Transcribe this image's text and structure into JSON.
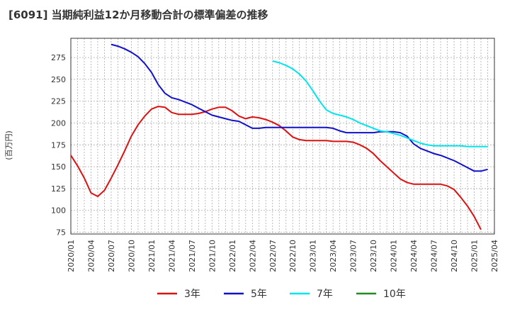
{
  "chart_data": {
    "type": "line",
    "title": "[6091]  当期純利益12か月移動合計の標準偏差の推移",
    "ylabel": "(百万円)",
    "xlabel": "",
    "ylim": [
      73,
      297
    ],
    "yticks": [
      75,
      100,
      125,
      150,
      175,
      200,
      225,
      250,
      275
    ],
    "x_ticks": [
      "2020/01",
      "2020/04",
      "2020/07",
      "2020/10",
      "2021/01",
      "2021/04",
      "2021/07",
      "2021/10",
      "2022/01",
      "2022/04",
      "2022/07",
      "2022/10",
      "2023/01",
      "2023/04",
      "2023/07",
      "2023/10",
      "2024/01",
      "2024/04",
      "2024/07",
      "2024/10",
      "2025/01",
      "2025/04"
    ],
    "grid": true,
    "legend_position": "bottom",
    "series": [
      {
        "name": "3年",
        "color": "#dd1111",
        "points": [
          [
            "2020/01",
            163
          ],
          [
            "2020/02",
            151
          ],
          [
            "2020/03",
            137
          ],
          [
            "2020/04",
            120
          ],
          [
            "2020/05",
            116
          ],
          [
            "2020/06",
            123
          ],
          [
            "2020/07",
            137
          ],
          [
            "2020/08",
            152
          ],
          [
            "2020/09",
            168
          ],
          [
            "2020/10",
            185
          ],
          [
            "2020/11",
            198
          ],
          [
            "2020/12",
            208
          ],
          [
            "2021/01",
            216
          ],
          [
            "2021/02",
            219
          ],
          [
            "2021/03",
            218
          ],
          [
            "2021/04",
            212
          ],
          [
            "2021/05",
            210
          ],
          [
            "2021/06",
            210
          ],
          [
            "2021/07",
            210
          ],
          [
            "2021/08",
            211
          ],
          [
            "2021/09",
            213
          ],
          [
            "2021/10",
            216
          ],
          [
            "2021/11",
            218
          ],
          [
            "2021/12",
            218
          ],
          [
            "2022/01",
            214
          ],
          [
            "2022/02",
            208
          ],
          [
            "2022/03",
            205
          ],
          [
            "2022/04",
            207
          ],
          [
            "2022/05",
            206
          ],
          [
            "2022/06",
            204
          ],
          [
            "2022/07",
            201
          ],
          [
            "2022/08",
            197
          ],
          [
            "2022/09",
            191
          ],
          [
            "2022/10",
            184
          ],
          [
            "2022/11",
            181
          ],
          [
            "2022/12",
            180
          ],
          [
            "2023/01",
            180
          ],
          [
            "2023/02",
            180
          ],
          [
            "2023/03",
            180
          ],
          [
            "2023/04",
            179
          ],
          [
            "2023/05",
            179
          ],
          [
            "2023/06",
            179
          ],
          [
            "2023/07",
            178
          ],
          [
            "2023/08",
            175
          ],
          [
            "2023/09",
            171
          ],
          [
            "2023/10",
            165
          ],
          [
            "2023/11",
            157
          ],
          [
            "2023/12",
            150
          ],
          [
            "2024/01",
            143
          ],
          [
            "2024/02",
            136
          ],
          [
            "2024/03",
            132
          ],
          [
            "2024/04",
            130
          ],
          [
            "2024/05",
            130
          ],
          [
            "2024/06",
            130
          ],
          [
            "2024/07",
            130
          ],
          [
            "2024/08",
            130
          ],
          [
            "2024/09",
            128
          ],
          [
            "2024/10",
            124
          ],
          [
            "2024/11",
            115
          ],
          [
            "2024/12",
            105
          ],
          [
            "2025/01",
            93
          ],
          [
            "2025/02",
            78
          ]
        ]
      },
      {
        "name": "5年",
        "color": "#1111cc",
        "points": [
          [
            "2020/07",
            290
          ],
          [
            "2020/08",
            288
          ],
          [
            "2020/09",
            285
          ],
          [
            "2020/10",
            281
          ],
          [
            "2020/11",
            276
          ],
          [
            "2020/12",
            268
          ],
          [
            "2021/01",
            258
          ],
          [
            "2021/02",
            244
          ],
          [
            "2021/03",
            234
          ],
          [
            "2021/04",
            229
          ],
          [
            "2021/05",
            227
          ],
          [
            "2021/06",
            224
          ],
          [
            "2021/07",
            221
          ],
          [
            "2021/08",
            217
          ],
          [
            "2021/09",
            213
          ],
          [
            "2021/10",
            209
          ],
          [
            "2021/11",
            207
          ],
          [
            "2021/12",
            205
          ],
          [
            "2022/01",
            203
          ],
          [
            "2022/02",
            202
          ],
          [
            "2022/03",
            198
          ],
          [
            "2022/04",
            194
          ],
          [
            "2022/05",
            194
          ],
          [
            "2022/06",
            195
          ],
          [
            "2022/07",
            195
          ],
          [
            "2022/08",
            195
          ],
          [
            "2022/09",
            195
          ],
          [
            "2022/10",
            195
          ],
          [
            "2022/11",
            195
          ],
          [
            "2022/12",
            195
          ],
          [
            "2023/01",
            195
          ],
          [
            "2023/02",
            195
          ],
          [
            "2023/03",
            195
          ],
          [
            "2023/04",
            194
          ],
          [
            "2023/05",
            191
          ],
          [
            "2023/06",
            189
          ],
          [
            "2023/07",
            189
          ],
          [
            "2023/08",
            189
          ],
          [
            "2023/09",
            189
          ],
          [
            "2023/10",
            189
          ],
          [
            "2023/11",
            190
          ],
          [
            "2023/12",
            190
          ],
          [
            "2024/01",
            190
          ],
          [
            "2024/02",
            189
          ],
          [
            "2024/03",
            185
          ],
          [
            "2024/04",
            176
          ],
          [
            "2024/05",
            171
          ],
          [
            "2024/06",
            168
          ],
          [
            "2024/07",
            165
          ],
          [
            "2024/08",
            163
          ],
          [
            "2024/09",
            160
          ],
          [
            "2024/10",
            157
          ],
          [
            "2024/11",
            153
          ],
          [
            "2024/12",
            149
          ],
          [
            "2025/01",
            145
          ],
          [
            "2025/02",
            145
          ],
          [
            "2025/03",
            147
          ]
        ]
      },
      {
        "name": "7年",
        "color": "#00e5ee",
        "points": [
          [
            "2022/07",
            271
          ],
          [
            "2022/08",
            269
          ],
          [
            "2022/09",
            266
          ],
          [
            "2022/10",
            262
          ],
          [
            "2022/11",
            256
          ],
          [
            "2022/12",
            248
          ],
          [
            "2023/01",
            237
          ],
          [
            "2023/02",
            225
          ],
          [
            "2023/03",
            215
          ],
          [
            "2023/04",
            211
          ],
          [
            "2023/05",
            209
          ],
          [
            "2023/06",
            207
          ],
          [
            "2023/07",
            204
          ],
          [
            "2023/08",
            200
          ],
          [
            "2023/09",
            197
          ],
          [
            "2023/10",
            194
          ],
          [
            "2023/11",
            191
          ],
          [
            "2023/12",
            190
          ],
          [
            "2024/01",
            188
          ],
          [
            "2024/02",
            186
          ],
          [
            "2024/03",
            183
          ],
          [
            "2024/04",
            180
          ],
          [
            "2024/05",
            177
          ],
          [
            "2024/06",
            175
          ],
          [
            "2024/07",
            174
          ],
          [
            "2024/08",
            174
          ],
          [
            "2024/09",
            174
          ],
          [
            "2024/10",
            174
          ],
          [
            "2024/11",
            174
          ],
          [
            "2024/12",
            173
          ],
          [
            "2025/01",
            173
          ],
          [
            "2025/02",
            173
          ],
          [
            "2025/03",
            173
          ]
        ]
      },
      {
        "name": "10年",
        "color": "#228b22",
        "points": []
      }
    ]
  }
}
